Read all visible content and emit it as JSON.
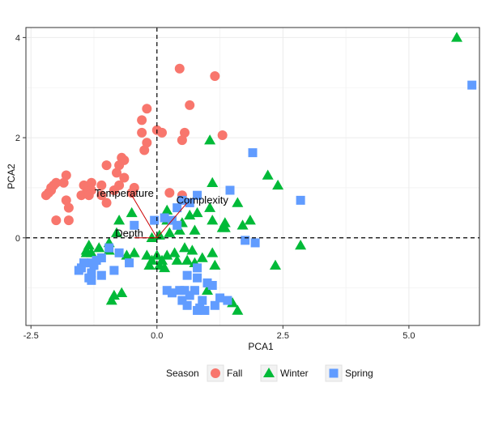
{
  "chart_data": {
    "type": "scatter",
    "xlabel": "PCA1",
    "ylabel": "PCA2",
    "xlim": [
      -2.6,
      6.4
    ],
    "ylim": [
      -1.75,
      4.2
    ],
    "xticks": [
      -2.5,
      0.0,
      2.5,
      5.0
    ],
    "xtick_labels": [
      "-2.5",
      "0.0",
      "2.5",
      "5.0"
    ],
    "yticks": [
      0,
      2,
      4
    ],
    "ytick_labels": [
      "0",
      "2",
      "4"
    ],
    "grid": true,
    "reference_lines": {
      "x": 0,
      "y": 0,
      "style": "dashed"
    },
    "legend": {
      "title": "Season",
      "placement": "bottom"
    },
    "series": [
      {
        "name": "Fall",
        "marker": "circle",
        "color": "#F8766D",
        "points": [
          [
            0.45,
            3.38
          ],
          [
            1.15,
            3.23
          ],
          [
            -0.2,
            2.58
          ],
          [
            0.65,
            2.65
          ],
          [
            -0.3,
            2.35
          ],
          [
            0.0,
            2.15
          ],
          [
            -0.3,
            2.1
          ],
          [
            0.1,
            2.1
          ],
          [
            -0.2,
            1.9
          ],
          [
            -0.25,
            1.75
          ],
          [
            0.55,
            2.1
          ],
          [
            0.5,
            1.95
          ],
          [
            1.3,
            2.05
          ],
          [
            -0.7,
            1.6
          ],
          [
            -0.65,
            1.55
          ],
          [
            -0.75,
            1.45
          ],
          [
            -0.8,
            1.3
          ],
          [
            -1.0,
            1.45
          ],
          [
            -0.65,
            1.2
          ],
          [
            -0.75,
            1.05
          ],
          [
            -0.85,
            0.95
          ],
          [
            -1.3,
            1.1
          ],
          [
            -1.45,
            1.05
          ],
          [
            -1.1,
            1.05
          ],
          [
            -1.3,
            0.95
          ],
          [
            -1.4,
            0.9
          ],
          [
            -1.5,
            0.85
          ],
          [
            -1.35,
            0.85
          ],
          [
            -1.8,
            1.25
          ],
          [
            -1.85,
            1.1
          ],
          [
            -2.0,
            1.1
          ],
          [
            -2.05,
            1.05
          ],
          [
            -2.1,
            1.0
          ],
          [
            -2.1,
            0.95
          ],
          [
            -2.15,
            0.9
          ],
          [
            -2.2,
            0.85
          ],
          [
            -1.8,
            0.75
          ],
          [
            -1.75,
            0.6
          ],
          [
            -1.75,
            0.35
          ],
          [
            -2.0,
            0.35
          ],
          [
            -1.0,
            0.7
          ],
          [
            -1.1,
            0.85
          ],
          [
            -0.5,
            0.9
          ],
          [
            -0.45,
            1.0
          ],
          [
            0.25,
            0.9
          ],
          [
            0.5,
            0.85
          ]
        ]
      },
      {
        "name": "Winter",
        "marker": "triangle",
        "color": "#00BA38",
        "points": [
          [
            5.95,
            4.0
          ],
          [
            1.05,
            1.95
          ],
          [
            2.2,
            1.25
          ],
          [
            2.4,
            1.05
          ],
          [
            1.1,
            1.1
          ],
          [
            1.6,
            0.7
          ],
          [
            1.05,
            0.6
          ],
          [
            0.65,
            0.45
          ],
          [
            0.8,
            0.5
          ],
          [
            1.1,
            0.35
          ],
          [
            1.35,
            0.3
          ],
          [
            0.5,
            0.3
          ],
          [
            0.45,
            0.15
          ],
          [
            0.75,
            0.15
          ],
          [
            1.3,
            0.2
          ],
          [
            1.35,
            0.2
          ],
          [
            1.7,
            0.25
          ],
          [
            1.85,
            0.35
          ],
          [
            0.2,
            0.55
          ],
          [
            0.2,
            0.35
          ],
          [
            0.25,
            0.1
          ],
          [
            0.05,
            0.05
          ],
          [
            -0.1,
            0.0
          ],
          [
            -0.5,
            0.5
          ],
          [
            -0.75,
            0.35
          ],
          [
            -0.8,
            0.1
          ],
          [
            -0.95,
            -0.1
          ],
          [
            -1.15,
            -0.2
          ],
          [
            -1.3,
            -0.3
          ],
          [
            -1.35,
            -0.15
          ],
          [
            -1.4,
            -0.25
          ],
          [
            -1.4,
            -0.3
          ],
          [
            -0.95,
            -0.25
          ],
          [
            -0.6,
            -0.35
          ],
          [
            -0.45,
            -0.3
          ],
          [
            -0.2,
            -0.35
          ],
          [
            -0.1,
            -0.45
          ],
          [
            0.0,
            -0.35
          ],
          [
            0.1,
            -0.45
          ],
          [
            0.2,
            -0.35
          ],
          [
            0.35,
            -0.3
          ],
          [
            0.4,
            -0.45
          ],
          [
            0.15,
            -0.6
          ],
          [
            -0.15,
            -0.55
          ],
          [
            0.05,
            -0.55
          ],
          [
            0.55,
            -0.2
          ],
          [
            0.7,
            -0.25
          ],
          [
            0.75,
            -0.5
          ],
          [
            0.9,
            -0.4
          ],
          [
            0.6,
            -0.45
          ],
          [
            1.1,
            -0.3
          ],
          [
            1.15,
            -0.55
          ],
          [
            2.35,
            -0.55
          ],
          [
            2.85,
            -0.15
          ],
          [
            -0.85,
            -1.15
          ],
          [
            -0.9,
            -1.25
          ],
          [
            -0.7,
            -1.1
          ],
          [
            1.0,
            -1.05
          ],
          [
            1.5,
            -1.3
          ],
          [
            1.6,
            -1.45
          ]
        ]
      },
      {
        "name": "Spring",
        "marker": "square",
        "color": "#619CFF",
        "points": [
          [
            6.25,
            3.05
          ],
          [
            1.9,
            1.7
          ],
          [
            2.85,
            0.75
          ],
          [
            1.45,
            0.95
          ],
          [
            0.8,
            0.85
          ],
          [
            0.5,
            0.75
          ],
          [
            0.65,
            0.7
          ],
          [
            0.4,
            0.6
          ],
          [
            0.15,
            0.4
          ],
          [
            0.3,
            0.35
          ],
          [
            -0.05,
            0.35
          ],
          [
            0.4,
            0.25
          ],
          [
            -0.45,
            0.25
          ],
          [
            -0.95,
            -0.2
          ],
          [
            -0.55,
            -0.5
          ],
          [
            -0.75,
            -0.3
          ],
          [
            -1.1,
            -0.4
          ],
          [
            -1.2,
            -0.45
          ],
          [
            -1.25,
            -0.55
          ],
          [
            -1.3,
            -0.5
          ],
          [
            -1.45,
            -0.5
          ],
          [
            -1.5,
            -0.6
          ],
          [
            -1.3,
            -0.7
          ],
          [
            -1.1,
            -0.75
          ],
          [
            -0.85,
            -0.65
          ],
          [
            -1.35,
            -0.8
          ],
          [
            -1.55,
            -0.65
          ],
          [
            -1.3,
            -0.85
          ],
          [
            0.8,
            -0.6
          ],
          [
            0.6,
            -0.75
          ],
          [
            0.8,
            -0.8
          ],
          [
            1.0,
            -0.9
          ],
          [
            1.1,
            -0.95
          ],
          [
            0.75,
            -1.05
          ],
          [
            0.55,
            -1.05
          ],
          [
            0.45,
            -1.05
          ],
          [
            0.2,
            -1.05
          ],
          [
            0.3,
            -1.1
          ],
          [
            0.65,
            -1.15
          ],
          [
            0.9,
            -1.25
          ],
          [
            0.5,
            -1.25
          ],
          [
            0.6,
            -1.35
          ],
          [
            0.85,
            -1.4
          ],
          [
            1.25,
            -1.2
          ],
          [
            1.15,
            -1.35
          ],
          [
            0.8,
            -1.45
          ],
          [
            0.95,
            -1.45
          ],
          [
            1.75,
            -0.05
          ],
          [
            1.95,
            -0.1
          ],
          [
            1.4,
            -1.25
          ]
        ]
      }
    ],
    "loading_arrows": [
      {
        "label": "Temperature",
        "x": -0.5,
        "y": 0.85,
        "label_x": -0.65,
        "label_y": 0.82
      },
      {
        "label": "Complexity",
        "x": 0.6,
        "y": 0.7,
        "label_x": 0.9,
        "label_y": 0.68
      },
      {
        "label": "Depth",
        "x": -0.45,
        "y": 0.0,
        "label_x": -0.55,
        "label_y": 0.02
      }
    ]
  }
}
